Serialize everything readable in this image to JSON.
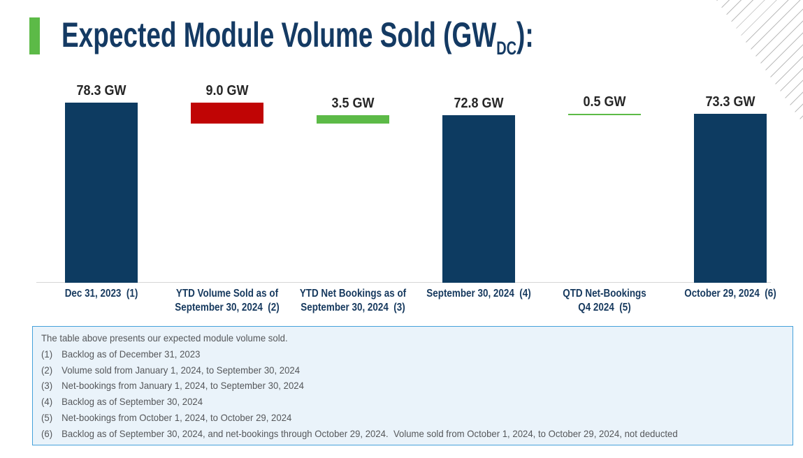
{
  "title": {
    "prefix": "Expected Module Volume Sold (GW",
    "subscript": "DC",
    "suffix": "):"
  },
  "chart_data": {
    "type": "bar",
    "subtype": "waterfall",
    "title": "Expected Module Volume Sold (GWDC):",
    "unit": "GW",
    "ylim": [
      0,
      78.3
    ],
    "grid": false,
    "legend": false,
    "colors": {
      "navy": "#0D3B61",
      "red": "#C00505",
      "green": "#5CBA47"
    },
    "bars": [
      {
        "category": "Dec 31, 2023  (1)",
        "value": 78.3,
        "value_label": "78.3 GW",
        "span": [
          0,
          78.3
        ],
        "color": "navy"
      },
      {
        "category": "YTD Volume Sold as of\nSeptember 30, 2024  (2)",
        "value": 9.0,
        "value_label": "9.0 GW",
        "span": [
          69.3,
          78.3
        ],
        "color": "red"
      },
      {
        "category": "YTD Net Bookings as of\nSeptember 30, 2024  (3)",
        "value": 3.5,
        "value_label": "3.5 GW",
        "span": [
          69.3,
          72.8
        ],
        "color": "green"
      },
      {
        "category": "September 30, 2024  (4)",
        "value": 72.8,
        "value_label": "72.8 GW",
        "span": [
          0,
          72.8
        ],
        "color": "navy"
      },
      {
        "category": "QTD Net-Bookings\nQ4 2024  (5)",
        "value": 0.5,
        "value_label": "0.5 GW",
        "span": [
          72.8,
          73.3
        ],
        "color": "green"
      },
      {
        "category": "October 29, 2024  (6)",
        "value": 73.3,
        "value_label": "73.3 GW",
        "span": [
          0,
          73.3
        ],
        "color": "navy"
      }
    ]
  },
  "footnote_box": {
    "intro": "The table above presents our expected module volume sold.",
    "notes": [
      {
        "num": "(1)",
        "text": "Backlog as of December 31, 2023"
      },
      {
        "num": "(2)",
        "text": "Volume sold from January 1, 2024, to September 30, 2024"
      },
      {
        "num": "(3)",
        "text": "Net-bookings from January 1, 2024, to September 30, 2024"
      },
      {
        "num": "(4)",
        "text": "Backlog as of September 30, 2024"
      },
      {
        "num": "(5)",
        "text": "Net-bookings from October 1, 2024, to October 29, 2024"
      },
      {
        "num": "(6)",
        "text": "Backlog as of September 30, 2024, and net-bookings through October 29, 2024.  Volume sold from October 1, 2024, to October 29, 2024, not deducted"
      }
    ]
  }
}
